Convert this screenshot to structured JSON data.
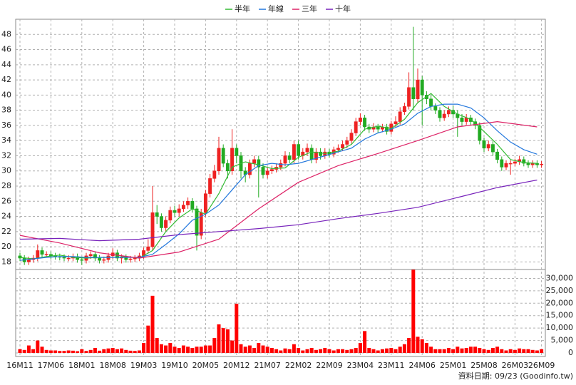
{
  "chart_data": {
    "type": "candlestick",
    "categories": [
      "16M11",
      null,
      null,
      null,
      null,
      null,
      null,
      "17M06",
      null,
      null,
      null,
      null,
      null,
      null,
      "18M01",
      null,
      null,
      null,
      null,
      null,
      null,
      "18M08",
      null,
      null,
      null,
      null,
      null,
      null,
      "19M03",
      null,
      null,
      null,
      null,
      null,
      null,
      "19M10",
      null,
      null,
      null,
      null,
      null,
      null,
      "20M05",
      null,
      null,
      null,
      null,
      null,
      null,
      "20M12",
      null,
      null,
      null,
      null,
      null,
      null,
      "21M07",
      null,
      null,
      null,
      null,
      null,
      null,
      "22M02",
      null,
      null,
      null,
      null,
      null,
      null,
      "22M09",
      null,
      null,
      null,
      null,
      null,
      null,
      "23M04",
      null,
      null,
      null,
      null,
      null,
      null,
      "23M11",
      null,
      null,
      null,
      null,
      null,
      null,
      "24M06",
      null,
      null,
      null,
      null,
      null,
      null,
      "25M01",
      null,
      null,
      null,
      null,
      null,
      null,
      "25M08",
      null,
      null,
      null,
      null,
      null,
      null,
      "26M03",
      null,
      null,
      null,
      null,
      null,
      "26M09"
    ],
    "open": [
      18.8,
      18.5,
      18.0,
      18.3,
      18.5,
      19.5,
      19.0,
      19.0,
      18.8,
      18.7,
      18.6,
      18.5,
      18.5,
      18.7,
      18.3,
      18.2,
      18.8,
      19.0,
      18.5,
      18.2,
      18.3,
      18.8,
      19.2,
      18.5,
      18.6,
      18.3,
      18.4,
      18.5,
      18.8,
      19.5,
      20.0,
      24.5,
      24.0,
      22.5,
      23.5,
      24.8,
      24.5,
      25.0,
      25.5,
      26.0,
      25.0,
      21.5,
      24.5,
      27.0,
      29.0,
      30.0,
      33.0,
      31.0,
      30.0,
      33.0,
      32.0,
      30.0,
      29.5,
      31.0,
      31.5,
      30.5,
      29.5,
      30.0,
      30.2,
      30.5,
      31.0,
      32.0,
      31.5,
      33.5,
      32.0,
      32.5,
      33.0,
      31.5,
      32.5,
      32.0,
      32.5,
      32.2,
      32.8,
      33.0,
      33.5,
      34.0,
      35.0,
      36.5,
      37.0,
      35.8,
      35.5,
      35.8,
      35.5,
      35.8,
      35.2,
      36.2,
      36.5,
      37.8,
      38.5,
      41.0,
      39.5,
      42.0,
      40.0,
      39.5,
      38.5,
      38.0,
      37.0,
      37.5,
      38.0,
      37.5,
      37.0,
      36.5,
      37.0,
      36.5,
      36.0,
      34.0,
      33.0,
      33.5,
      32.5,
      31.5,
      30.5,
      31.0,
      31.0,
      31.2,
      31.5,
      31.0,
      30.8,
      31.0,
      30.8
    ],
    "high": [
      19.2,
      18.9,
      18.7,
      18.9,
      20.3,
      19.9,
      19.4,
      19.4,
      19.2,
      19.1,
      19.0,
      18.9,
      19.1,
      19.1,
      18.7,
      19.2,
      19.4,
      19.4,
      18.9,
      18.7,
      19.2,
      19.8,
      19.6,
      19.0,
      19.0,
      18.8,
      18.9,
      19.2,
      19.9,
      21.0,
      28.0,
      25.5,
      24.4,
      24.0,
      25.3,
      25.4,
      25.6,
      26.0,
      26.5,
      26.4,
      25.4,
      25.0,
      27.5,
      29.6,
      30.8,
      34.5,
      33.5,
      31.5,
      35.5,
      33.5,
      32.5,
      30.5,
      31.5,
      32.0,
      32.0,
      31.0,
      30.5,
      30.7,
      31.0,
      31.5,
      32.6,
      32.5,
      34.0,
      34.0,
      33.0,
      33.6,
      33.5,
      33.0,
      33.0,
      33.0,
      32.9,
      33.2,
      33.5,
      34.0,
      34.5,
      35.5,
      37.0,
      37.6,
      37.4,
      36.2,
      36.3,
      36.2,
      36.2,
      36.2,
      36.6,
      37.2,
      38.4,
      39.0,
      43.0,
      49.0,
      43.5,
      42.5,
      40.5,
      40.0,
      38.9,
      38.4,
      38.0,
      38.5,
      38.6,
      38.0,
      37.5,
      37.5,
      37.4,
      36.9,
      36.4,
      34.4,
      34.0,
      33.9,
      32.9,
      31.9,
      31.4,
      31.4,
      31.6,
      32.0,
      31.9,
      31.4,
      31.4,
      31.4,
      31.3
    ],
    "low": [
      18.1,
      17.6,
      17.6,
      17.9,
      18.1,
      18.6,
      18.6,
      18.4,
      18.3,
      18.2,
      18.1,
      18.1,
      18.1,
      17.9,
      17.6,
      17.8,
      18.4,
      18.1,
      17.8,
      17.8,
      17.9,
      18.4,
      18.1,
      17.8,
      17.9,
      17.9,
      18.0,
      18.1,
      18.4,
      19.1,
      19.6,
      23.0,
      22.0,
      22.0,
      23.1,
      24.0,
      24.0,
      24.6,
      25.0,
      24.5,
      19.5,
      21.0,
      24.0,
      26.5,
      28.5,
      29.5,
      30.5,
      29.0,
      29.5,
      31.0,
      29.0,
      28.5,
      29.0,
      30.5,
      26.5,
      29.0,
      29.0,
      29.6,
      29.8,
      30.1,
      30.6,
      31.0,
      31.0,
      31.5,
      31.5,
      32.0,
      31.0,
      31.0,
      31.5,
      31.6,
      31.8,
      31.8,
      32.4,
      32.6,
      33.0,
      33.6,
      34.6,
      36.0,
      35.3,
      35.0,
      35.1,
      35.0,
      35.1,
      34.8,
      34.8,
      35.8,
      36.1,
      37.4,
      38.1,
      38.0,
      39.0,
      36.0,
      38.8,
      38.0,
      37.5,
      36.5,
      36.6,
      37.1,
      37.0,
      34.5,
      36.0,
      36.1,
      36.0,
      35.5,
      33.5,
      32.5,
      32.6,
      32.0,
      31.0,
      30.0,
      30.1,
      29.5,
      30.6,
      30.8,
      30.6,
      30.4,
      30.4,
      30.4,
      30.4
    ],
    "close": [
      18.5,
      18.0,
      18.3,
      18.5,
      19.5,
      19.0,
      19.0,
      18.8,
      18.7,
      18.6,
      18.5,
      18.5,
      18.7,
      18.3,
      18.2,
      18.8,
      19.0,
      18.5,
      18.2,
      18.3,
      18.8,
      19.2,
      18.5,
      18.6,
      18.3,
      18.4,
      18.5,
      18.8,
      19.5,
      20.0,
      24.5,
      24.0,
      22.5,
      23.5,
      24.8,
      24.5,
      25.0,
      25.5,
      26.0,
      25.0,
      21.5,
      24.5,
      27.0,
      29.0,
      30.0,
      33.0,
      31.0,
      30.0,
      33.0,
      32.0,
      30.0,
      29.5,
      31.0,
      31.5,
      30.5,
      29.5,
      30.0,
      30.2,
      30.5,
      31.0,
      32.0,
      31.5,
      33.5,
      32.0,
      32.5,
      33.0,
      31.5,
      32.5,
      32.0,
      32.5,
      32.2,
      32.8,
      33.0,
      33.5,
      34.0,
      35.0,
      36.5,
      37.0,
      35.8,
      35.5,
      35.8,
      35.5,
      35.8,
      35.2,
      36.2,
      36.5,
      37.8,
      38.5,
      41.0,
      39.5,
      42.0,
      40.0,
      39.5,
      38.5,
      38.0,
      37.0,
      37.5,
      38.0,
      37.5,
      37.0,
      36.5,
      37.0,
      36.5,
      36.0,
      34.0,
      33.0,
      33.5,
      32.5,
      31.5,
      30.5,
      31.0,
      31.0,
      31.2,
      31.5,
      31.0,
      30.8,
      31.0,
      30.8,
      30.9
    ],
    "up_color": "#ee2222",
    "down_color": "#22aa22",
    "ylim": [
      17,
      50
    ],
    "yticks": [
      18,
      20,
      22,
      24,
      26,
      28,
      30,
      32,
      34,
      36,
      38,
      40,
      42,
      44,
      46,
      48
    ],
    "grid": true,
    "volume": {
      "color": "#ff0000",
      "ylim": [
        0,
        33000
      ],
      "yticks": [
        0,
        {
          "value": 5000,
          "label": "5,000"
        },
        {
          "value": 10000,
          "label": "10,000"
        },
        {
          "value": 15000,
          "label": "15,000"
        },
        {
          "value": 20000,
          "label": "20,000"
        },
        {
          "value": 25000,
          "label": "25,000"
        },
        {
          "value": 30000,
          "label": "30,000"
        }
      ],
      "values": [
        1500,
        1200,
        3000,
        1500,
        5000,
        2500,
        1200,
        1000,
        1000,
        800,
        800,
        1000,
        900,
        700,
        1500,
        800,
        1200,
        2000,
        900,
        1500,
        1800,
        2000,
        1500,
        1800,
        1200,
        900,
        800,
        1000,
        4000,
        11000,
        23000,
        6000,
        3500,
        3000,
        4000,
        2500,
        2000,
        3000,
        2500,
        2000,
        2500,
        2500,
        3000,
        3000,
        6000,
        11500,
        10000,
        9500,
        5000,
        19800,
        3500,
        2500,
        3000,
        2000,
        4000,
        3000,
        2500,
        2000,
        1500,
        1000,
        1800,
        1500,
        3500,
        2000,
        1000,
        1500,
        2000,
        1200,
        1500,
        2000,
        1500,
        1000,
        1500,
        1500,
        1200,
        1500,
        2000,
        4000,
        8800,
        2000,
        1500,
        1000,
        1500,
        1800,
        2000,
        1500,
        2500,
        3500,
        6000,
        33500,
        6500,
        5500,
        4000,
        2500,
        1500,
        1500,
        1500,
        2000,
        1500,
        2500,
        1800,
        2000,
        2500,
        2500,
        2000,
        1500,
        1200,
        2000,
        2500,
        1500,
        1000,
        1500,
        1200,
        1800,
        1500,
        1500,
        1200,
        1000,
        1500
      ]
    },
    "series": [
      {
        "name": "半年",
        "color": "#33bb33",
        "x": [
          0,
          3,
          6,
          9,
          12,
          15,
          18,
          21,
          24,
          27,
          30,
          33,
          36,
          39,
          42,
          45,
          48,
          51,
          54,
          57,
          60,
          63,
          66,
          69,
          72,
          75,
          78,
          81,
          84,
          87,
          90,
          93,
          96,
          99,
          102,
          105,
          108,
          111,
          114,
          117
        ],
        "values": [
          18.6,
          18.4,
          18.7,
          18.9,
          18.6,
          18.5,
          18.6,
          18.6,
          18.7,
          18.5,
          19.5,
          22,
          23.8,
          25,
          24.3,
          27,
          30.5,
          31.2,
          30.8,
          30.3,
          30.4,
          31.8,
          32.5,
          32.3,
          32.6,
          33.5,
          35.5,
          35.9,
          35.6,
          36.8,
          39,
          40.2,
          38.5,
          37.5,
          36.8,
          35.2,
          33.5,
          31.5,
          31.1,
          31.0
        ]
      },
      {
        "name": "年線",
        "color": "#2277dd",
        "x": [
          0,
          3,
          6,
          9,
          12,
          15,
          18,
          21,
          24,
          27,
          30,
          33,
          36,
          39,
          42,
          45,
          48,
          51,
          54,
          57,
          60,
          63,
          66,
          69,
          72,
          75,
          78,
          81,
          84,
          87,
          90,
          93,
          96,
          99,
          102,
          105,
          108,
          111,
          114,
          117
        ],
        "values": [
          18.2,
          18.4,
          18.6,
          18.7,
          18.7,
          18.6,
          18.6,
          18.6,
          18.6,
          18.6,
          19,
          20.3,
          21.7,
          23.5,
          24.3,
          25.5,
          27.5,
          29.5,
          30.7,
          31,
          30.8,
          31,
          31.5,
          32,
          32.5,
          33,
          34.2,
          35,
          35.5,
          36.2,
          37.6,
          38.5,
          38.8,
          38.8,
          38.3,
          37,
          35.3,
          33.8,
          32.8,
          32.2
        ]
      },
      {
        "name": "三年",
        "color": "#dd2266",
        "x": [
          0,
          9,
          18,
          27,
          36,
          45,
          54,
          63,
          72,
          81,
          90,
          99,
          108,
          117
        ],
        "values": [
          21.5,
          20.5,
          19.2,
          18.5,
          19.3,
          21,
          25,
          28.5,
          30.7,
          32.3,
          34,
          35.8,
          36.5,
          35.8
        ]
      },
      {
        "name": "十年",
        "color": "#7722bb",
        "x": [
          0,
          9,
          18,
          27,
          36,
          45,
          54,
          63,
          72,
          81,
          90,
          99,
          108,
          117
        ],
        "values": [
          21,
          21.1,
          20.8,
          21,
          21.6,
          22,
          22.4,
          22.9,
          23.7,
          24.4,
          25.2,
          26.5,
          27.8,
          28.8
        ]
      }
    ],
    "note": "資料日期: 09/23 (Goodinfo.tw)"
  }
}
